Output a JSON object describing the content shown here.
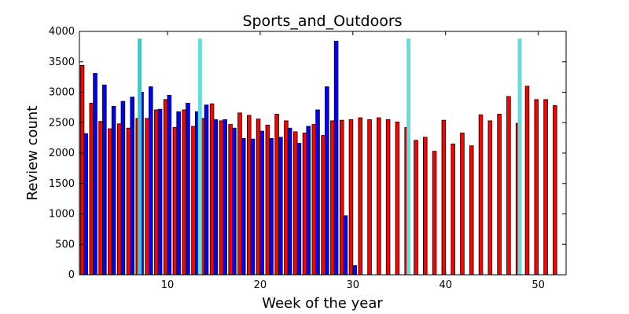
{
  "chart_data": {
    "type": "bar",
    "title": "Sports_and_Outdoors",
    "xlabel": "Week of the year",
    "ylabel": "Review count",
    "xlim": [
      0.5,
      53
    ],
    "ylim": [
      0,
      4000
    ],
    "xticks": [
      10,
      20,
      30,
      40,
      50
    ],
    "yticks": [
      0,
      500,
      1000,
      1500,
      2000,
      2500,
      3000,
      3500,
      4000
    ],
    "grid": false,
    "legend": "none",
    "weeks": [
      1,
      2,
      3,
      4,
      5,
      6,
      7,
      8,
      9,
      10,
      11,
      12,
      13,
      14,
      15,
      16,
      17,
      18,
      19,
      20,
      21,
      22,
      23,
      24,
      25,
      26,
      27,
      28,
      29,
      30,
      31,
      32,
      33,
      34,
      35,
      36,
      37,
      38,
      39,
      40,
      41,
      42,
      43,
      44,
      45,
      46,
      47,
      48,
      49,
      50,
      51,
      52
    ],
    "series": [
      {
        "color": "#ff0000",
        "values": [
          3440,
          2820,
          2520,
          2400,
          2480,
          2410,
          2570,
          2570,
          2710,
          2880,
          2420,
          2710,
          2440,
          2570,
          2810,
          2530,
          2470,
          2660,
          2620,
          2560,
          2460,
          2640,
          2530,
          2350,
          2330,
          2470,
          2290,
          2530,
          2540,
          2550,
          2580,
          2550,
          2580,
          2550,
          2510,
          2420,
          2210,
          2260,
          2030,
          2540,
          2150,
          2330,
          2120,
          2630,
          2530,
          2640,
          2930,
          2490,
          3100,
          2880,
          2880,
          2780
        ]
      },
      {
        "color": "#0000ff",
        "values": [
          2320,
          3310,
          3120,
          2770,
          2850,
          2920,
          3000,
          3090,
          2720,
          2950,
          2680,
          2820,
          2680,
          2790,
          2550,
          2550,
          2410,
          2240,
          2230,
          2360,
          2240,
          2260,
          2410,
          2160,
          2440,
          2710,
          3090,
          3840,
          970,
          150
        ]
      }
    ],
    "vlines": [
      {
        "x": 7,
        "color": "#33cccc"
      },
      {
        "x": 13.5,
        "color": "#66dddd"
      },
      {
        "x": 36,
        "color": "#66dddd"
      },
      {
        "x": 48,
        "color": "#66dddd"
      }
    ]
  }
}
